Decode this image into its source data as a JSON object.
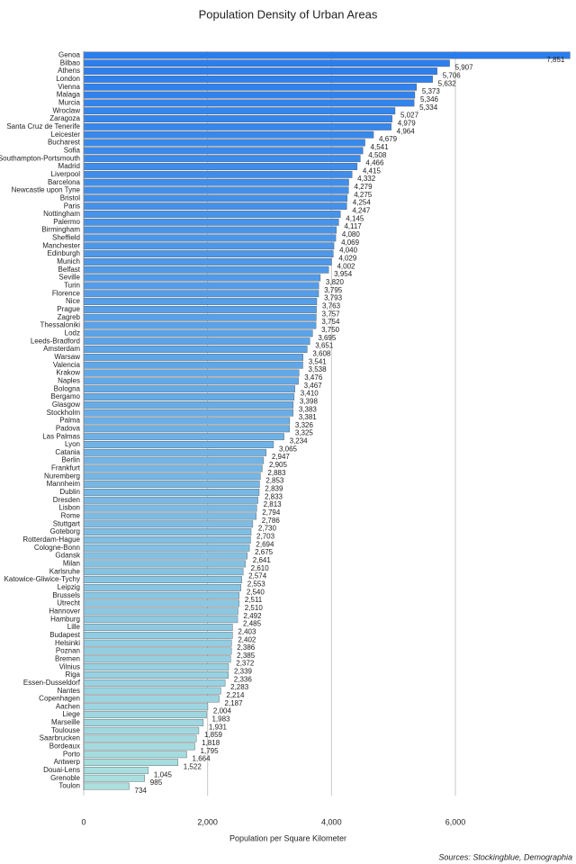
{
  "chart_data": {
    "type": "barh",
    "title": "Population Density of Urban Areas",
    "x_label": "Population per Square Kilometer",
    "source": "Sources: Stockingblue, Demographia",
    "categories": [
      "Genoa",
      "Bilbao",
      "Athens",
      "London",
      "Vienna",
      "Malaga",
      "Murcia",
      "Wroclaw",
      "Zaragoza",
      "Santa Cruz de Tenerife",
      "Leicester",
      "Bucharest",
      "Sofia",
      "Southampton-Portsmouth",
      "Madrid",
      "Liverpool",
      "Barcelona",
      "Newcastle upon Tyne",
      "Bristol",
      "Paris",
      "Nottingham",
      "Palermo",
      "Birmingham",
      "Sheffield",
      "Manchester",
      "Edinburgh",
      "Munich",
      "Belfast",
      "Seville",
      "Turin",
      "Florence",
      "Nice",
      "Prague",
      "Zagreb",
      "Thessaloniki",
      "Lodz",
      "Leeds-Bradford",
      "Amsterdam",
      "Warsaw",
      "Valencia",
      "Krakow",
      "Naples",
      "Bologna",
      "Bergamo",
      "Glasgow",
      "Stockholm",
      "Palma",
      "Padova",
      "Las Palmas",
      "Lyon",
      "Catania",
      "Berlin",
      "Frankfurt",
      "Nuremberg",
      "Mannheim",
      "Dublin",
      "Dresden",
      "Lisbon",
      "Rome",
      "Stuttgart",
      "Goteborg",
      "Rotterdam-Hague",
      "Cologne-Bonn",
      "Gdansk",
      "Milan",
      "Karlsruhe",
      "Katowice-Gliwice-Tychy",
      "Leipzig",
      "Brussels",
      "Utrecht",
      "Hannover",
      "Hamburg",
      "Lille",
      "Budapest",
      "Helsinki",
      "Poznan",
      "Bremen",
      "Vilnius",
      "Riga",
      "Essen-Dusseldorf",
      "Nantes",
      "Copenhagen",
      "Aachen",
      "Liege",
      "Marseille",
      "Toulouse",
      "Saarbrucken",
      "Bordeaux",
      "Porto",
      "Antwerp",
      "Douai-Lens",
      "Grenoble",
      "Toulon"
    ],
    "values": [
      7851,
      5907,
      5706,
      5632,
      5373,
      5346,
      5334,
      5027,
      4979,
      4964,
      4679,
      4541,
      4508,
      4466,
      4415,
      4332,
      4279,
      4275,
      4254,
      4247,
      4145,
      4117,
      4080,
      4069,
      4040,
      4029,
      4002,
      3954,
      3820,
      3795,
      3793,
      3763,
      3757,
      3754,
      3750,
      3695,
      3651,
      3608,
      3541,
      3538,
      3476,
      3467,
      3410,
      3398,
      3383,
      3381,
      3326,
      3325,
      3234,
      3065,
      2947,
      2905,
      2883,
      2853,
      2839,
      2833,
      2813,
      2794,
      2786,
      2730,
      2703,
      2694,
      2675,
      2641,
      2610,
      2574,
      2553,
      2540,
      2511,
      2510,
      2492,
      2485,
      2403,
      2402,
      2386,
      2385,
      2372,
      2339,
      2336,
      2283,
      2214,
      2187,
      2004,
      1983,
      1931,
      1859,
      1818,
      1795,
      1664,
      1522,
      1045,
      985,
      734
    ],
    "value_labels": [
      "7,851",
      "5,907",
      "5,706",
      "5,632",
      "5,373",
      "5,346",
      "5,334",
      "5,027",
      "4,979",
      "4,964",
      "4,679",
      "4,541",
      "4,508",
      "4,466",
      "4,415",
      "4,332",
      "4,279",
      "4,275",
      "4,254",
      "4,247",
      "4,145",
      "4,117",
      "4,080",
      "4,069",
      "4,040",
      "4,029",
      "4,002",
      "3,954",
      "3,820",
      "3,795",
      "3,793",
      "3,763",
      "3,757",
      "3,754",
      "3,750",
      "3,695",
      "3,651",
      "3,608",
      "3,541",
      "3,538",
      "3,476",
      "3,467",
      "3,410",
      "3,398",
      "3,383",
      "3,381",
      "3,326",
      "3,325",
      "3,234",
      "3,065",
      "2,947",
      "2,905",
      "2,883",
      "2,853",
      "2,839",
      "2,833",
      "2,813",
      "2,794",
      "2,786",
      "2,730",
      "2,703",
      "2,694",
      "2,675",
      "2,641",
      "2,610",
      "2,574",
      "2,553",
      "2,540",
      "2,511",
      "2,510",
      "2,492",
      "2,485",
      "2,403",
      "2,402",
      "2,386",
      "2,385",
      "2,372",
      "2,339",
      "2,336",
      "2,283",
      "2,214",
      "2,187",
      "2,004",
      "1,983",
      "1,931",
      "1,859",
      "1,818",
      "1,795",
      "1,664",
      "1,522",
      "1,045",
      "985",
      "734"
    ],
    "gradient": [
      "#2a7ded",
      "#abe0df"
    ],
    "xlim": [
      0,
      7860
    ],
    "xticks": [
      0,
      {
        "value": 2000,
        "label": "2,000"
      },
      {
        "value": 4000,
        "label": "4,000"
      },
      {
        "value": 6000,
        "label": "6,000"
      }
    ],
    "grid": true
  }
}
